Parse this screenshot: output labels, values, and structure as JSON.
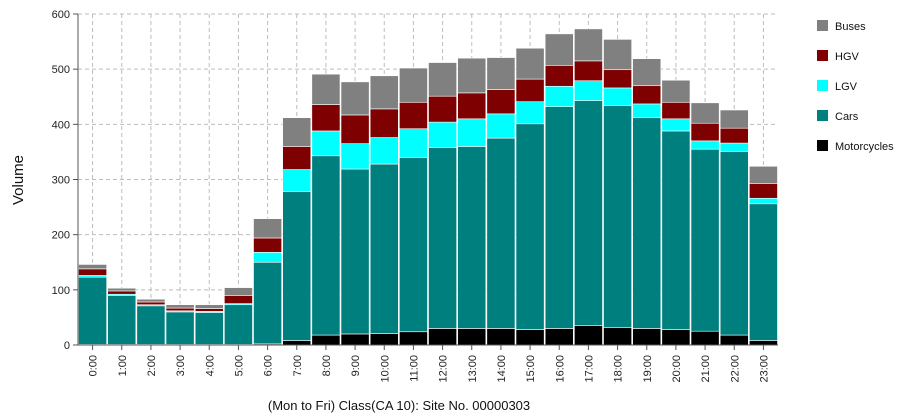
{
  "chart_data": {
    "type": "bar",
    "stacked": true,
    "title": "",
    "xlabel": "(Mon to Fri)  Class(CA 10):  Site No. 00000303",
    "ylabel": "Volume",
    "ylim": [
      0,
      600
    ],
    "yticks": [
      "0",
      "100",
      "200",
      "300",
      "400",
      "500",
      "600"
    ],
    "grid": true,
    "legend_position": "right",
    "categories": [
      "0:00",
      "1:00",
      "2:00",
      "3:00",
      "4:00",
      "5:00",
      "6:00",
      "7:00",
      "8:00",
      "9:00",
      "10:00",
      "11:00",
      "12:00",
      "13:00",
      "14:00",
      "15:00",
      "16:00",
      "17:00",
      "18:00",
      "19:00",
      "20:00",
      "21:00",
      "22:00",
      "23:00"
    ],
    "series": [
      {
        "name": "Motorcycles",
        "color": "#000000",
        "values": [
          1,
          1,
          1,
          1,
          1,
          1,
          2,
          8,
          18,
          20,
          21,
          24,
          30,
          30,
          30,
          28,
          30,
          35,
          32,
          30,
          28,
          25,
          18,
          8
        ]
      },
      {
        "name": "Cars",
        "color": "#007f7f",
        "values": [
          122,
          89,
          70,
          59,
          58,
          72,
          148,
          270,
          325,
          299,
          307,
          316,
          328,
          330,
          345,
          373,
          402,
          408,
          402,
          382,
          360,
          330,
          333,
          248
        ]
      },
      {
        "name": "LGV",
        "color": "#00ffff",
        "values": [
          3,
          2,
          2,
          2,
          2,
          2,
          18,
          40,
          45,
          46,
          48,
          52,
          46,
          50,
          44,
          40,
          37,
          36,
          32,
          25,
          22,
          15,
          15,
          10
        ]
      },
      {
        "name": "HGV",
        "color": "#7f0000",
        "values": [
          12,
          6,
          5,
          5,
          5,
          15,
          26,
          42,
          48,
          52,
          52,
          48,
          47,
          47,
          44,
          41,
          38,
          36,
          33,
          33,
          30,
          32,
          27,
          27
        ]
      },
      {
        "name": "Buses",
        "color": "#808080",
        "values": [
          8,
          5,
          5,
          6,
          7,
          14,
          35,
          52,
          55,
          60,
          60,
          62,
          61,
          63,
          58,
          56,
          57,
          58,
          55,
          49,
          40,
          37,
          33,
          31
        ]
      }
    ],
    "legend_order": [
      "Buses",
      "HGV",
      "LGV",
      "Cars",
      "Motorcycles"
    ]
  }
}
